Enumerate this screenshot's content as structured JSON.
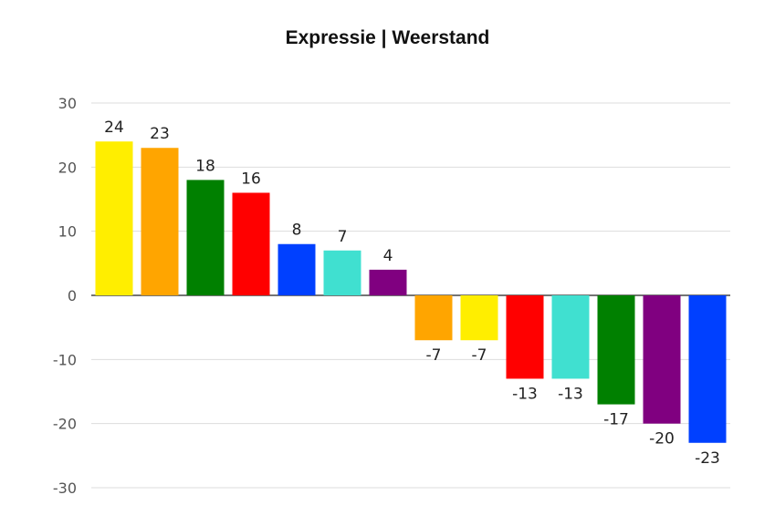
{
  "chart_data": {
    "type": "bar",
    "title": "Expressie | Weerstand",
    "xlabel": "",
    "ylabel": "",
    "ylim": [
      -30,
      30
    ],
    "yticks": [
      30,
      20,
      10,
      0,
      -10,
      -20,
      -30
    ],
    "grid": true,
    "legend": "none",
    "values": [
      24,
      23,
      18,
      16,
      8,
      7,
      4,
      -7,
      -7,
      -13,
      -13,
      -17,
      -20,
      -23
    ],
    "data_labels": [
      "24",
      "23",
      "18",
      "16",
      "8",
      "7",
      "4",
      "-7",
      "-7",
      "-13",
      "-13",
      "-17",
      "-20",
      "-23"
    ],
    "colors": [
      "#ffee00",
      "#ffa500",
      "#008000",
      "#ff0000",
      "#0040ff",
      "#40e0d0",
      "#800080",
      "#ffa500",
      "#ffee00",
      "#ff0000",
      "#40e0d0",
      "#008000",
      "#800080",
      "#0040ff"
    ]
  }
}
